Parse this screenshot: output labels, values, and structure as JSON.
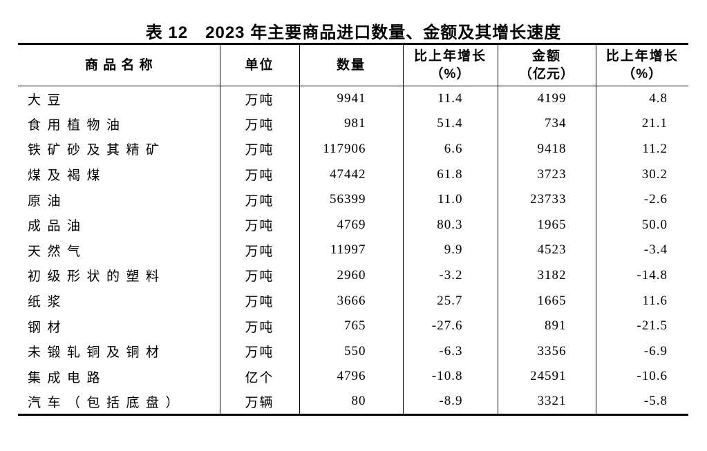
{
  "title": "表 12　2023 年主要商品进口数量、金额及其增长速度",
  "table": {
    "headers": [
      {
        "label": "商品名称",
        "sub": ""
      },
      {
        "label": "单位",
        "sub": ""
      },
      {
        "label": "数量",
        "sub": ""
      },
      {
        "label": "比上年增长",
        "sub": "（%）"
      },
      {
        "label": "金额",
        "sub": "（亿元）"
      },
      {
        "label": "比上年增长",
        "sub": "（%）"
      }
    ],
    "rows": [
      [
        "大豆",
        "万吨",
        "9941",
        "11.4",
        "4199",
        "4.8"
      ],
      [
        "食用植物油",
        "万吨",
        "981",
        "51.4",
        "734",
        "21.1"
      ],
      [
        "铁矿砂及其精矿",
        "万吨",
        "117906",
        "6.6",
        "9418",
        "11.2"
      ],
      [
        "煤及褐煤",
        "万吨",
        "47442",
        "61.8",
        "3723",
        "30.2"
      ],
      [
        "原油",
        "万吨",
        "56399",
        "11.0",
        "23733",
        "-2.6"
      ],
      [
        "成品油",
        "万吨",
        "4769",
        "80.3",
        "1965",
        "50.0"
      ],
      [
        "天然气",
        "万吨",
        "11997",
        "9.9",
        "4523",
        "-3.4"
      ],
      [
        "初级形状的塑料",
        "万吨",
        "2960",
        "-3.2",
        "3182",
        "-14.8"
      ],
      [
        "纸浆",
        "万吨",
        "3666",
        "25.7",
        "1665",
        "11.6"
      ],
      [
        "钢材",
        "万吨",
        "765",
        "-27.6",
        "891",
        "-21.5"
      ],
      [
        "未锻轧铜及铜材",
        "万吨",
        "550",
        "-6.3",
        "3356",
        "-6.9"
      ],
      [
        "集成电路",
        "亿个",
        "4796",
        "-10.8",
        "24591",
        "-10.6"
      ],
      [
        "汽车（包括底盘）",
        "万辆",
        "80",
        "-8.9",
        "3321",
        "-5.8"
      ]
    ]
  },
  "chart_data": {
    "type": "table",
    "title": "表12 2023年主要商品进口数量、金额及其增长速度",
    "columns": [
      "商品名称",
      "单位",
      "数量",
      "比上年增长（%）",
      "金额（亿元）",
      "比上年增长（%）"
    ],
    "rows": [
      [
        "大豆",
        "万吨",
        9941,
        11.4,
        4199,
        4.8
      ],
      [
        "食用植物油",
        "万吨",
        981,
        51.4,
        734,
        21.1
      ],
      [
        "铁矿砂及其精矿",
        "万吨",
        117906,
        6.6,
        9418,
        11.2
      ],
      [
        "煤及褐煤",
        "万吨",
        47442,
        61.8,
        3723,
        30.2
      ],
      [
        "原油",
        "万吨",
        56399,
        11.0,
        23733,
        -2.6
      ],
      [
        "成品油",
        "万吨",
        4769,
        80.3,
        1965,
        50.0
      ],
      [
        "天然气",
        "万吨",
        11997,
        9.9,
        4523,
        -3.4
      ],
      [
        "初级形状的塑料",
        "万吨",
        2960,
        -3.2,
        3182,
        -14.8
      ],
      [
        "纸浆",
        "万吨",
        3666,
        25.7,
        1665,
        11.6
      ],
      [
        "钢材",
        "万吨",
        765,
        -27.6,
        891,
        -21.5
      ],
      [
        "未锻轧铜及铜材",
        "万吨",
        550,
        -6.3,
        3356,
        -6.9
      ],
      [
        "集成电路",
        "亿个",
        4796,
        -10.8,
        24591,
        -10.6
      ],
      [
        "汽车（包括底盘）",
        "万辆",
        80,
        -8.9,
        3321,
        -5.8
      ]
    ]
  }
}
